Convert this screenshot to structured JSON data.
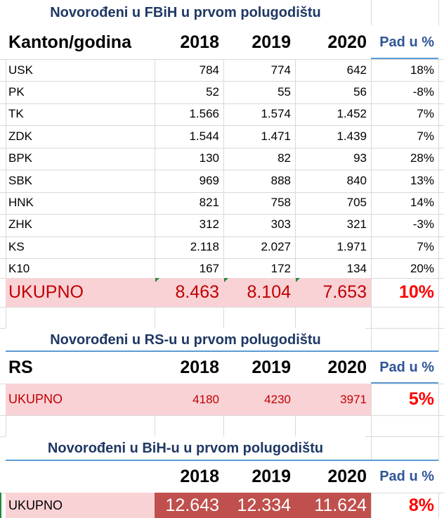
{
  "fbih": {
    "title": "Novorođeni u FBiH u prvom polugodištu",
    "header": {
      "label": "Kanton/godina",
      "y1": "2018",
      "y2": "2019",
      "y3": "2020",
      "pad": "Pad u %"
    },
    "rows": [
      {
        "kanton": "USK",
        "v2018": "784",
        "v2019": "774",
        "v2020": "642",
        "pad": "18%"
      },
      {
        "kanton": "PK",
        "v2018": "52",
        "v2019": "55",
        "v2020": "56",
        "pad": "-8%"
      },
      {
        "kanton": "TK",
        "v2018": "1.566",
        "v2019": "1.574",
        "v2020": "1.452",
        "pad": "7%"
      },
      {
        "kanton": "ZDK",
        "v2018": "1.544",
        "v2019": "1.471",
        "v2020": "1.439",
        "pad": "7%"
      },
      {
        "kanton": "BPK",
        "v2018": "130",
        "v2019": "82",
        "v2020": "93",
        "pad": "28%"
      },
      {
        "kanton": "SBK",
        "v2018": "969",
        "v2019": "888",
        "v2020": "840",
        "pad": "13%"
      },
      {
        "kanton": "HNK",
        "v2018": "821",
        "v2019": "758",
        "v2020": "705",
        "pad": "14%"
      },
      {
        "kanton": "ZHK",
        "v2018": "312",
        "v2019": "303",
        "v2020": "321",
        "pad": "-3%"
      },
      {
        "kanton": "KS",
        "v2018": "2.118",
        "v2019": "2.027",
        "v2020": "1.971",
        "pad": "7%"
      },
      {
        "kanton": "K10",
        "v2018": "167",
        "v2019": "172",
        "v2020": "134",
        "pad": "20%"
      }
    ],
    "total": {
      "label": "UKUPNO",
      "v2018": "8.463",
      "v2019": "8.104",
      "v2020": "7.653",
      "pad": "10%"
    }
  },
  "rs": {
    "title": "Novorođeni u RS-u u prvom polugodištu",
    "header": {
      "label": "RS",
      "y1": "2018",
      "y2": "2019",
      "y3": "2020",
      "pad": "Pad u %"
    },
    "total": {
      "label": "UKUPNO",
      "v2018": "4180",
      "v2019": "4230",
      "v2020": "3971",
      "pad": "5%"
    }
  },
  "bih": {
    "title": "Novorođeni u BiH-u u prvom polugodištu",
    "header": {
      "y1": "2018",
      "y2": "2019",
      "y3": "2020",
      "pad": "Pad u %"
    },
    "total": {
      "label": "UKUPNO",
      "v2018": "12.643",
      "v2019": "12.334",
      "v2020": "11.624",
      "pad": "8%"
    }
  },
  "colors": {
    "title": "#1f3864",
    "pad_header": "#2f5597",
    "pink_fill": "#f9d2d6",
    "dark_red_fill": "#c0504d",
    "total_red": "#c00000",
    "percent_red": "#ff0000"
  }
}
